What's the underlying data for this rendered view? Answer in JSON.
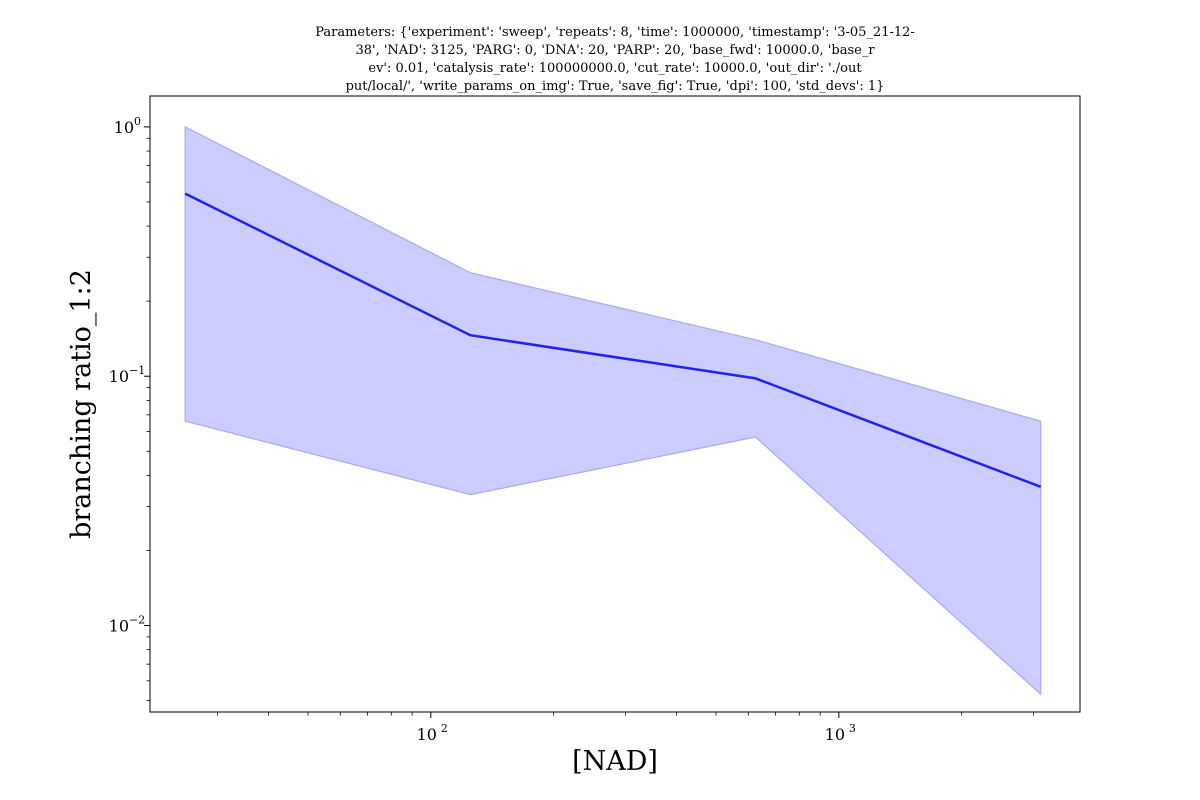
{
  "chart_data": {
    "type": "line",
    "title_lines": [
      "Parameters: {'experiment': 'sweep', 'repeats': 8, 'time': 1000000, 'timestamp': '3-05_21-12-",
      "38', 'NAD': 3125, 'PARG': 0, 'DNA': 20, 'PARP': 20, 'base_fwd': 10000.0, 'base_r",
      "ev': 0.01, 'catalysis_rate': 100000000.0, 'cut_rate': 10000.0, 'out_dir': './out",
      "put/local/', 'write_params_on_img': True, 'save_fig': True, 'dpi': 100, 'std_devs': 1}"
    ],
    "xlabel": "[NAD]",
    "ylabel": "branching ratio_1:2",
    "xscale": "log",
    "yscale": "log",
    "xlim": [
      20.5,
      3900
    ],
    "ylim": [
      0.0045,
      1.33
    ],
    "x_ticks": [
      {
        "value": 100,
        "label": "10",
        "exp": "2"
      },
      {
        "value": 1000,
        "label": "10",
        "exp": "3"
      }
    ],
    "y_ticks": [
      {
        "value": 0.01,
        "label": "10",
        "exp": "−2"
      },
      {
        "value": 0.1,
        "label": "10",
        "exp": "−1"
      },
      {
        "value": 1,
        "label": "10",
        "exp": "0"
      }
    ],
    "grid": false,
    "series": [
      {
        "x": [
          25,
          125,
          625,
          3125
        ],
        "y": [
          0.54,
          0.146,
          0.098,
          0.036
        ],
        "lower": [
          0.066,
          0.0335,
          0.057,
          0.0053
        ],
        "upper": [
          1.0,
          0.26,
          0.14,
          0.066
        ],
        "color": "#2222ee",
        "band_color": "#ccccff"
      }
    ]
  }
}
